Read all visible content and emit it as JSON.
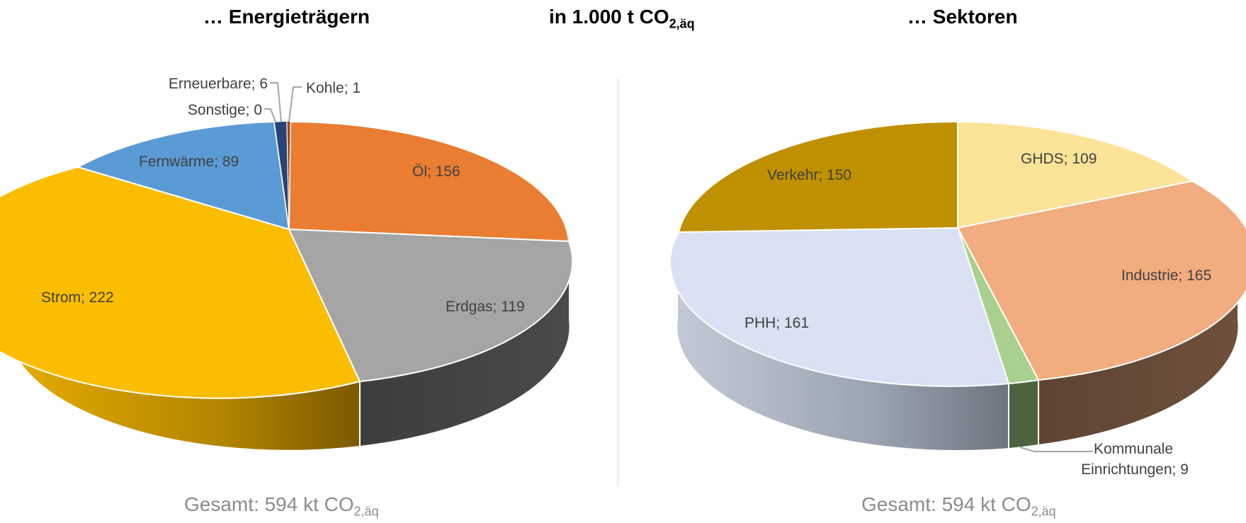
{
  "header": {
    "left_title": "… Energieträgern",
    "center_title": "in 1.000 t CO",
    "center_title_sub": "2,äq",
    "right_title": "… Sektoren"
  },
  "footer": {
    "left_total": "Gesamt: 594 kt CO",
    "left_total_sub": "2,äq",
    "right_total": "Gesamt: 594 kt CO",
    "right_total_sub": "2,äq"
  },
  "chart_data": [
    {
      "type": "pie",
      "title": "… Energieträgern",
      "style": "3d",
      "slices": [
        {
          "label": "Öl",
          "value": 156,
          "color": "#E97D31"
        },
        {
          "label": "Erdgas",
          "value": 119,
          "color": "#A5A5A5",
          "side_color": "#404040"
        },
        {
          "label": "Strom",
          "value": 222,
          "color": "#FBBD00",
          "side_color": "#B38600"
        },
        {
          "label": "Fernwärme",
          "value": 89,
          "color": "#5B9BD5"
        },
        {
          "label": "Sonstige",
          "value": 0,
          "color": "#264478"
        },
        {
          "label": "Erneuerbare",
          "value": 6,
          "color": "#264478"
        },
        {
          "label": "Kohle",
          "value": 1,
          "color": "#9E480E"
        }
      ],
      "labels": [
        "Öl; 156",
        "Erdgas; 119",
        "Strom; 222",
        "Fernwärme; 89",
        "Sonstige; 0",
        "Erneuerbare; 6",
        "Kohle; 1"
      ]
    },
    {
      "type": "pie",
      "title": "… Sektoren",
      "style": "3d",
      "slices": [
        {
          "label": "GHDS",
          "value": 109,
          "color": "#FBE398"
        },
        {
          "label": "Industrie",
          "value": 165,
          "color": "#F1AC7F",
          "side_color": "#634A38"
        },
        {
          "label": "Kommunale Einrichtungen",
          "value": 9,
          "color": "#A9D08E",
          "side_color": "#4B6340"
        },
        {
          "label": "PHH",
          "value": 161,
          "color": "#D9E1F2",
          "side_color": "#9BA5B5"
        },
        {
          "label": "Verkehr",
          "value": 150,
          "color": "#BF9000"
        }
      ],
      "labels": [
        "GHDS; 109",
        "Industrie; 165",
        "Kommunale",
        "Einrichtungen; 9",
        "PHH; 161",
        "Verkehr; 150"
      ]
    }
  ]
}
